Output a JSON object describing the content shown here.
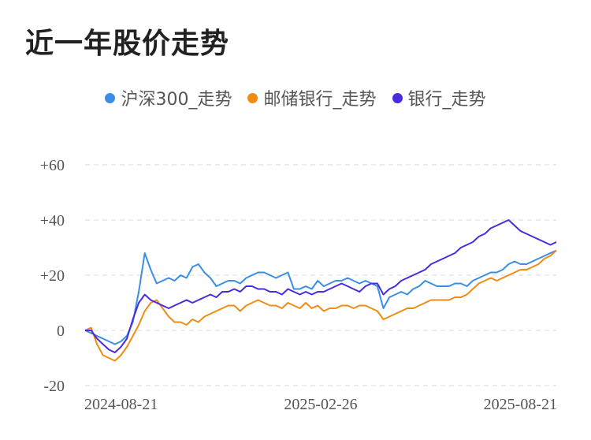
{
  "chart_data": {
    "type": "line",
    "title": "近一年股价走势",
    "xlabel": "",
    "ylabel": "",
    "ylim": [
      -20,
      60
    ],
    "y_ticks": [
      {
        "value": 60,
        "label": "+60"
      },
      {
        "value": 40,
        "label": "+40"
      },
      {
        "value": 20,
        "label": "+20"
      },
      {
        "value": 0,
        "label": "0"
      },
      {
        "value": -20,
        "label": "-20"
      }
    ],
    "x_ticks": [
      {
        "pos": 0,
        "label": "2024-08-21"
      },
      {
        "pos": 0.5,
        "label": "2025-02-26"
      },
      {
        "pos": 1,
        "label": "2025-08-21"
      }
    ],
    "grid": true,
    "legend_position": "top-center",
    "series": [
      {
        "name": "沪深300_走势",
        "color": "#3a8ee6",
        "values": [
          0,
          -1,
          -2,
          -3,
          -4,
          -5,
          -4,
          -2,
          3,
          14,
          28,
          22,
          17,
          18,
          19,
          18,
          20,
          19,
          23,
          24,
          21,
          19,
          16,
          17,
          18,
          18,
          17,
          19,
          20,
          21,
          21,
          20,
          19,
          20,
          21,
          15,
          15,
          16,
          15,
          18,
          16,
          17,
          18,
          18,
          19,
          18,
          17,
          18,
          17,
          16,
          8,
          12,
          13,
          14,
          13,
          15,
          16,
          18,
          17,
          16,
          16,
          16,
          17,
          17,
          16,
          18,
          19,
          20,
          21,
          21,
          22,
          24,
          25,
          24,
          24,
          25,
          26,
          27,
          28,
          29
        ]
      },
      {
        "name": "邮储银行_走势",
        "color": "#f08c14",
        "values": [
          0,
          1,
          -5,
          -9,
          -10,
          -11,
          -9,
          -6,
          -2,
          2,
          7,
          10,
          11,
          8,
          5,
          3,
          3,
          2,
          4,
          3,
          5,
          6,
          7,
          8,
          9,
          9,
          7,
          9,
          10,
          11,
          10,
          9,
          9,
          8,
          10,
          9,
          8,
          10,
          8,
          9,
          7,
          8,
          8,
          9,
          9,
          8,
          9,
          9,
          8,
          7,
          4,
          5,
          6,
          7,
          8,
          8,
          9,
          10,
          11,
          11,
          11,
          11,
          12,
          12,
          13,
          15,
          17,
          18,
          19,
          18,
          19,
          20,
          21,
          22,
          22,
          23,
          24,
          26,
          27,
          29
        ]
      },
      {
        "name": "银行_走势",
        "color": "#4b2ae0",
        "values": [
          0,
          0,
          -3,
          -5,
          -7,
          -8,
          -6,
          -3,
          4,
          10,
          13,
          11,
          10,
          9,
          8,
          9,
          10,
          11,
          10,
          11,
          12,
          13,
          12,
          14,
          14,
          15,
          14,
          16,
          16,
          15,
          15,
          14,
          14,
          13,
          15,
          14,
          13,
          14,
          13,
          14,
          14,
          15,
          16,
          17,
          16,
          15,
          14,
          16,
          17,
          17,
          13,
          15,
          16,
          18,
          19,
          20,
          21,
          22,
          24,
          25,
          26,
          27,
          28,
          30,
          31,
          32,
          34,
          35,
          37,
          38,
          39,
          40,
          38,
          36,
          35,
          34,
          33,
          32,
          31,
          32
        ]
      }
    ]
  }
}
